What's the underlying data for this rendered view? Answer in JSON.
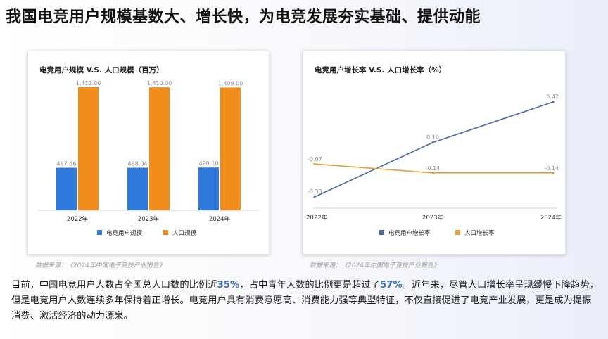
{
  "title": "我国电竞用户规模基数大、增长快，为电竞发展夯实基础、提供动能",
  "sources": [
    "数据来源：《2024年中国电子竞技产业报告》",
    "数据来源：《2024年中国电子竞技产业报告》"
  ],
  "paragraph": {
    "p1": "目前，中国电竞用户人数占全国总人口数的比例近",
    "h1": "35%",
    "p2": "，占中青年人数的比例更是超过了",
    "h2": "57%",
    "p3": "。近年来，尽管人口增长率呈现缓慢下降趋势，但是电竞用户人数连续多年保持着正增长。电竞用户具有消费意愿高、消费能力强等典型特征，不仅直接促进了电竞产业发展，更是成为提振消费、激活经济的动力源泉。"
  },
  "colors": {
    "blue": "#2f78dc",
    "orange": "#f28c1c",
    "line_blue": "#4a6aa8",
    "line_orange": "#d9a43a"
  },
  "chart_data": [
    {
      "type": "bar",
      "title": "电竞用户规模 V.S. 人口规模（百万）",
      "categories": [
        "2022年",
        "2023年",
        "2024年"
      ],
      "series": [
        {
          "name": "电竞用户规模",
          "values": [
            487.56,
            488.04,
            490.1
          ],
          "labels": [
            "487.56",
            "488.04",
            "490.10"
          ]
        },
        {
          "name": "人口规模",
          "values": [
            1412.0,
            1410.0,
            1408.0
          ],
          "labels": [
            "1,412.00",
            "1,410.00",
            "1,408.00"
          ]
        }
      ],
      "ylim": [
        0,
        1500
      ],
      "grid": false,
      "legend": "bottom"
    },
    {
      "type": "line",
      "title": "电竞用户增长率 V.S. 人口增长率（%）",
      "categories": [
        "2022年",
        "2023年",
        "2024年"
      ],
      "series": [
        {
          "name": "电竞用户增长率",
          "values": [
            -0.33,
            0.1,
            0.42
          ],
          "labels": [
            "-0.33",
            "0.10",
            "0.42"
          ]
        },
        {
          "name": "人口增长率",
          "values": [
            -0.07,
            -0.14,
            -0.14
          ],
          "labels": [
            "-0.07",
            "-0.14",
            "-0.14"
          ]
        }
      ],
      "ylim": [
        -0.4,
        0.5
      ],
      "grid": false,
      "legend": "bottom"
    }
  ]
}
